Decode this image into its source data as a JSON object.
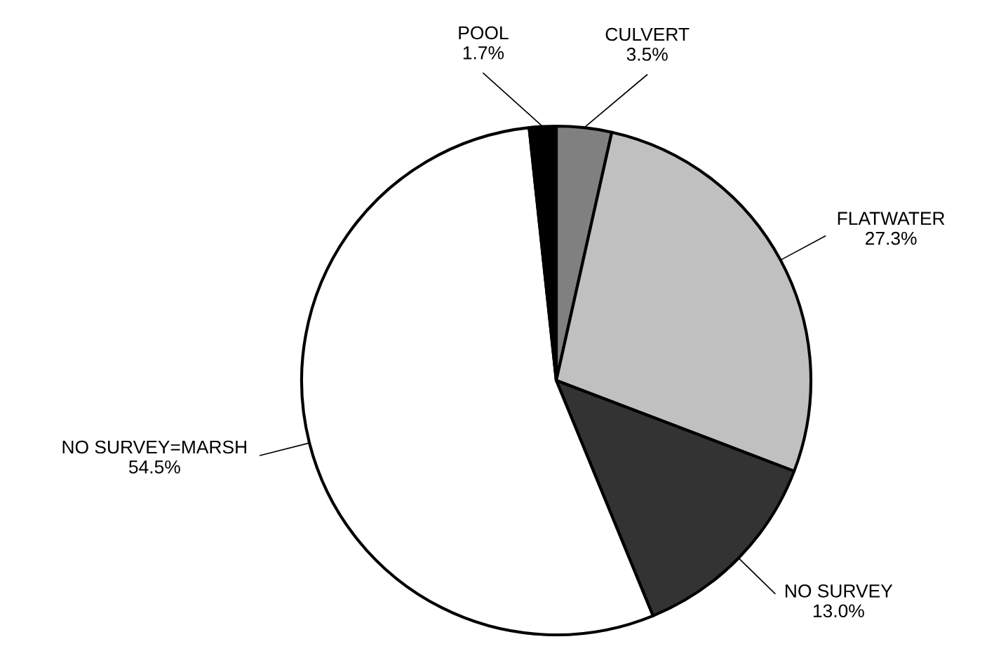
{
  "chart_data": {
    "type": "pie",
    "categories": [
      "CULVERT",
      "FLATWATER",
      "NO SURVEY",
      "NO SURVEY=MARSH",
      "POOL"
    ],
    "values": [
      3.5,
      27.3,
      13.0,
      54.5,
      1.7
    ],
    "colors": [
      "#808080",
      "#c0c0c0",
      "#333333",
      "#ffffff",
      "#000000"
    ],
    "value_labels": [
      "3.5%",
      "27.3%",
      "13.0%",
      "54.5%",
      "1.7%"
    ]
  }
}
